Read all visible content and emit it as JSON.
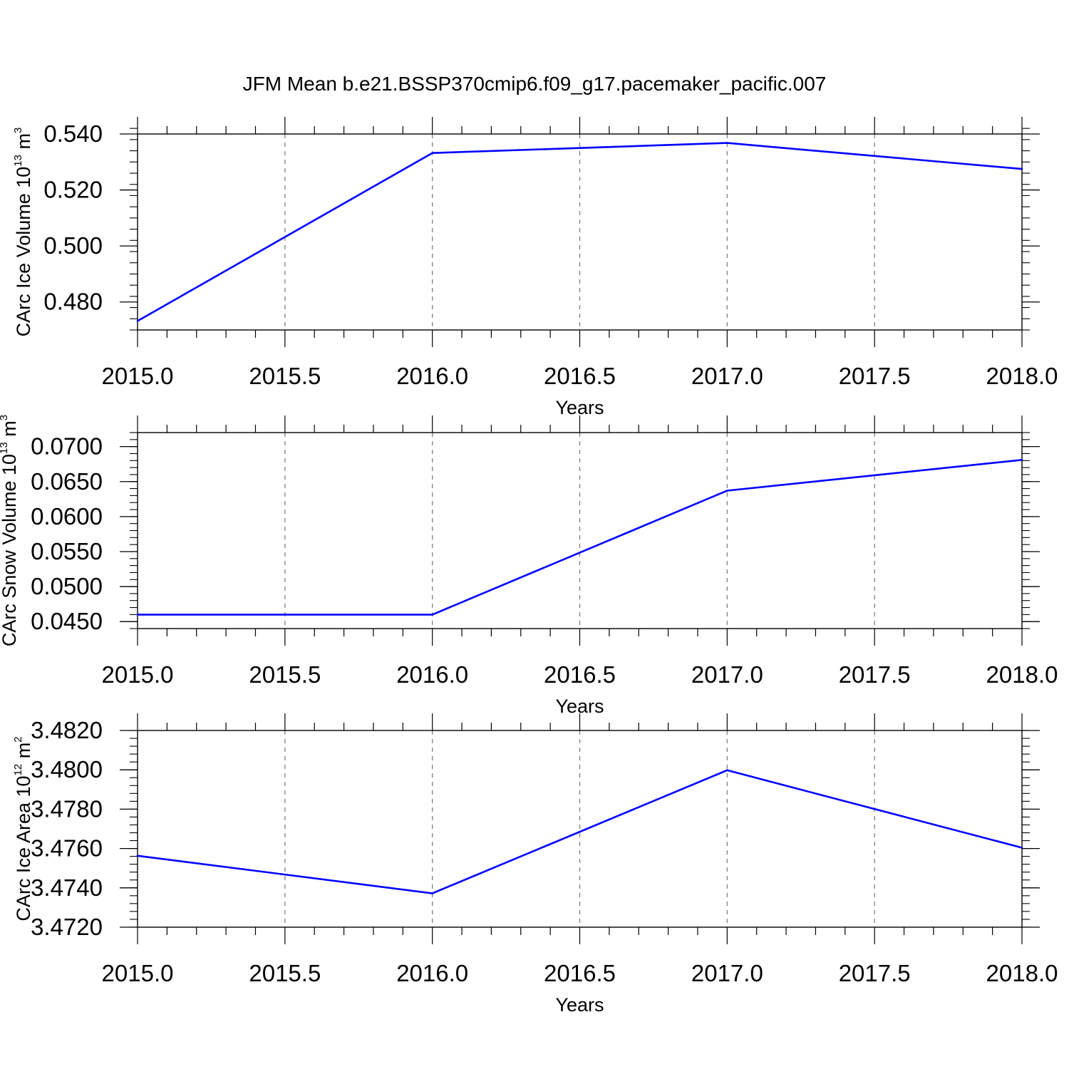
{
  "figure": {
    "title": "JFM Mean b.e21.BSSP370cmip6.f09_g17.pacemaker_pacific.007",
    "line_color": "#0000ff"
  },
  "chart_data": [
    {
      "type": "line",
      "xlabel": "Years",
      "ylabel": {
        "text": "CArc Ice Volume 10",
        "exp": "13",
        "unit": " m",
        "unit_exp": "3"
      },
      "xlim": [
        2015.0,
        2018.0
      ],
      "ylim": [
        0.47,
        0.54
      ],
      "x_ticks": [
        "2015.0",
        "2015.5",
        "2016.0",
        "2016.5",
        "2017.0",
        "2017.5",
        "2018.0"
      ],
      "y_ticks": [
        {
          "value": 0.48,
          "label": "0.480"
        },
        {
          "value": 0.5,
          "label": "0.500"
        },
        {
          "value": 0.52,
          "label": "0.520"
        },
        {
          "value": 0.54,
          "label": "0.540"
        }
      ],
      "y_minor_step": 0.004,
      "grid": "dashed vertical at major x ticks",
      "series": [
        {
          "x": [
            2015,
            2016,
            2017,
            2018
          ],
          "values": [
            0.4732,
            0.5332,
            0.5368,
            0.5275
          ]
        }
      ]
    },
    {
      "type": "line",
      "xlabel": "Years",
      "ylabel": {
        "text": "CArc Snow Volume 10",
        "exp": "13",
        "unit": " m",
        "unit_exp": "3"
      },
      "xlim": [
        2015.0,
        2018.0
      ],
      "ylim": [
        0.044,
        0.072
      ],
      "x_ticks": [
        "2015.0",
        "2015.5",
        "2016.0",
        "2016.5",
        "2017.0",
        "2017.5",
        "2018.0"
      ],
      "y_ticks": [
        {
          "value": 0.045,
          "label": "0.0450"
        },
        {
          "value": 0.05,
          "label": "0.0500"
        },
        {
          "value": 0.055,
          "label": "0.0550"
        },
        {
          "value": 0.06,
          "label": "0.0600"
        },
        {
          "value": 0.065,
          "label": "0.0650"
        },
        {
          "value": 0.07,
          "label": "0.0700"
        }
      ],
      "y_minor_step": 0.001,
      "grid": "dashed vertical at major x ticks",
      "series": [
        {
          "x": [
            2015,
            2016,
            2017,
            2018
          ],
          "values": [
            0.046,
            0.046,
            0.0637,
            0.0681
          ]
        }
      ]
    },
    {
      "type": "line",
      "xlabel": "Years",
      "ylabel": {
        "text": "CArc Ice Area 10",
        "exp": "12",
        "unit": " m",
        "unit_exp": "2"
      },
      "xlim": [
        2015.0,
        2018.0
      ],
      "ylim": [
        3.472,
        3.482
      ],
      "x_ticks": [
        "2015.0",
        "2015.5",
        "2016.0",
        "2016.5",
        "2017.0",
        "2017.5",
        "2018.0"
      ],
      "y_ticks": [
        {
          "value": 3.472,
          "label": "3.4720"
        },
        {
          "value": 3.474,
          "label": "3.4740"
        },
        {
          "value": 3.476,
          "label": "3.4760"
        },
        {
          "value": 3.478,
          "label": "3.4780"
        },
        {
          "value": 3.48,
          "label": "3.4800"
        },
        {
          "value": 3.482,
          "label": "3.4820"
        }
      ],
      "y_minor_step": 0.0004,
      "grid": "dashed vertical at major x ticks",
      "series": [
        {
          "x": [
            2015,
            2016,
            2017,
            2018
          ],
          "values": [
            3.47563,
            3.47372,
            3.47998,
            3.47604
          ]
        }
      ]
    }
  ]
}
